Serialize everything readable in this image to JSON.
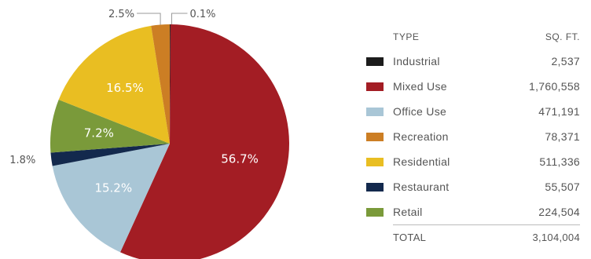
{
  "chart_data": {
    "type": "pie",
    "slices": [
      {
        "type": "Industrial",
        "sqft": "2,537",
        "percent": 0.1,
        "pct_label": "0.1%",
        "color": "#1c1c1c"
      },
      {
        "type": "Mixed Use",
        "sqft": "1,760,558",
        "percent": 56.7,
        "pct_label": "56.7%",
        "color": "#a31d24"
      },
      {
        "type": "Office Use",
        "sqft": "471,191",
        "percent": 15.2,
        "pct_label": "15.2%",
        "color": "#a9c6d6"
      },
      {
        "type": "Restaurant",
        "sqft": "55,507",
        "percent": 1.8,
        "pct_label": "1.8%",
        "color": "#13294d"
      },
      {
        "type": "Retail",
        "sqft": "224,504",
        "percent": 7.2,
        "pct_label": "7.2%",
        "color": "#7a9a3a"
      },
      {
        "type": "Residential",
        "sqft": "511,336",
        "percent": 16.5,
        "pct_label": "16.5%",
        "color": "#e9be22"
      },
      {
        "type": "Recreation",
        "sqft": "78,371",
        "percent": 2.5,
        "pct_label": "2.5%",
        "color": "#cc7e24"
      }
    ],
    "legend_order": [
      "Industrial",
      "Mixed Use",
      "Office Use",
      "Recreation",
      "Residential",
      "Restaurant",
      "Retail"
    ],
    "legend": {
      "col_type": "TYPE",
      "col_sqft": "SQ. FT.",
      "total_label": "TOTAL",
      "total_value": "3,104,004"
    }
  }
}
